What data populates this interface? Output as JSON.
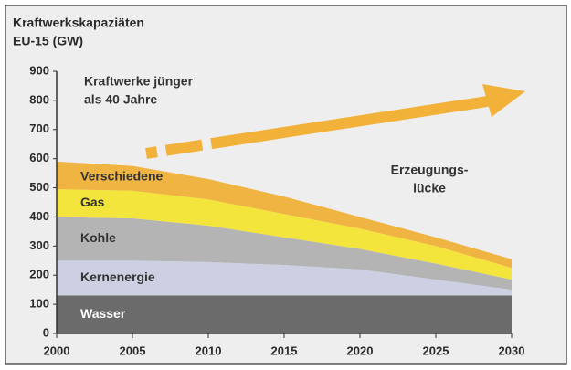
{
  "chart_data": {
    "type": "stacked-area",
    "title": "Kraftwerkskapaziäten",
    "subtitle": "EU-15 (GW)",
    "x": [
      2000,
      2005,
      2010,
      2015,
      2020,
      2025,
      2030
    ],
    "xlim": [
      2000,
      2030
    ],
    "xticks": [
      2000,
      2005,
      2010,
      2015,
      2020,
      2025,
      2030
    ],
    "ylim": [
      0,
      900
    ],
    "yticks": [
      0,
      100,
      200,
      300,
      400,
      500,
      600,
      700,
      800,
      900
    ],
    "series": [
      {
        "name": "Wasser",
        "color": "#6b6b6b",
        "values": [
          130,
          130,
          130,
          130,
          130,
          130,
          130
        ]
      },
      {
        "name": "Kernenergie",
        "color": "#cdd0e2",
        "values": [
          120,
          120,
          115,
          105,
          90,
          55,
          20
        ]
      },
      {
        "name": "Kohle",
        "color": "#b4b4b4",
        "values": [
          150,
          145,
          125,
          95,
          70,
          55,
          35
        ]
      },
      {
        "name": "Gas",
        "color": "#f4e53c",
        "values": [
          95,
          95,
          90,
          80,
          70,
          60,
          40
        ]
      },
      {
        "name": "Verschiedene",
        "color": "#f0b443",
        "values": [
          95,
          85,
          70,
          60,
          40,
          30,
          30
        ]
      }
    ],
    "annotations": [
      [
        "Kraftwerke jünger",
        "als 40 Jahre"
      ],
      [
        "Erzeugungs-",
        "lücke"
      ]
    ]
  }
}
